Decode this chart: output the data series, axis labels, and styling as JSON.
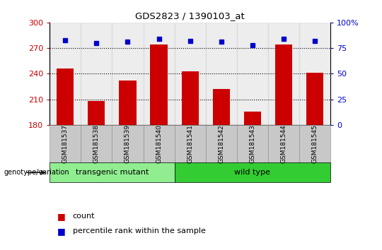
{
  "title": "GDS2823 / 1390103_at",
  "samples": [
    "GSM181537",
    "GSM181538",
    "GSM181539",
    "GSM181540",
    "GSM181541",
    "GSM181542",
    "GSM181543",
    "GSM181544",
    "GSM181545"
  ],
  "counts": [
    246,
    208,
    232,
    274,
    243,
    222,
    196,
    274,
    241
  ],
  "percentiles": [
    83,
    80,
    81,
    84,
    82,
    81,
    78,
    84,
    82
  ],
  "groups": [
    {
      "label": "transgenic mutant",
      "start": 0,
      "end": 3
    },
    {
      "label": "wild type",
      "start": 4,
      "end": 8
    }
  ],
  "group_color_light": "#90EE90",
  "group_color_dark": "#33CC33",
  "bar_color": "#CC0000",
  "percentile_color": "#0000CC",
  "col_bg_color": "#D3D3D3",
  "ylim_left": [
    180,
    300
  ],
  "ylim_right": [
    0,
    100
  ],
  "yticks_left": [
    180,
    210,
    240,
    270,
    300
  ],
  "yticks_right": [
    0,
    25,
    50,
    75,
    100
  ],
  "ytick_labels_right": [
    "0",
    "25",
    "50",
    "75",
    "100%"
  ],
  "gridlines": [
    210,
    240,
    270
  ],
  "left_tick_color": "#CC0000",
  "right_tick_color": "#0000CC",
  "genotype_label": "genotype/variation",
  "legend_count_label": "count",
  "legend_percentile_label": "percentile rank within the sample",
  "bar_width": 0.55,
  "figsize": [
    5.4,
    3.54
  ],
  "dpi": 100
}
